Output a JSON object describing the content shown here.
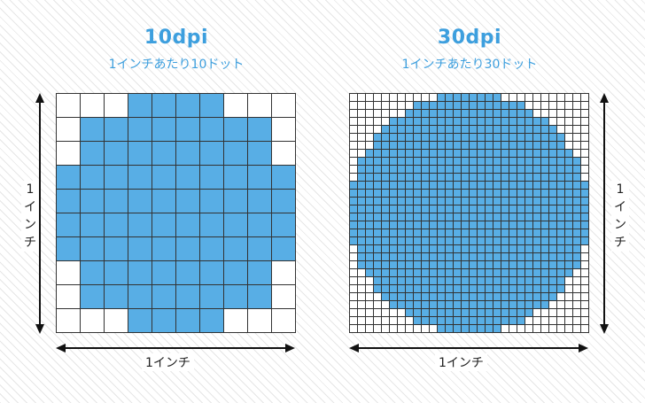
{
  "panels": [
    {
      "title": "10dpi",
      "subtitle": "1インチあたり10ドット",
      "dots": 10,
      "vertical_label": "1\nイ\nン\nチ",
      "horizontal_label": "1インチ"
    },
    {
      "title": "30dpi",
      "subtitle": "1インチあたり30ドット",
      "dots": 30,
      "vertical_label": "1\nイ\nン\nチ",
      "horizontal_label": "1インチ"
    }
  ],
  "colors": {
    "accent": "#3d9fde",
    "filled_dot": "#58aee5",
    "grid_line": "#333333"
  }
}
